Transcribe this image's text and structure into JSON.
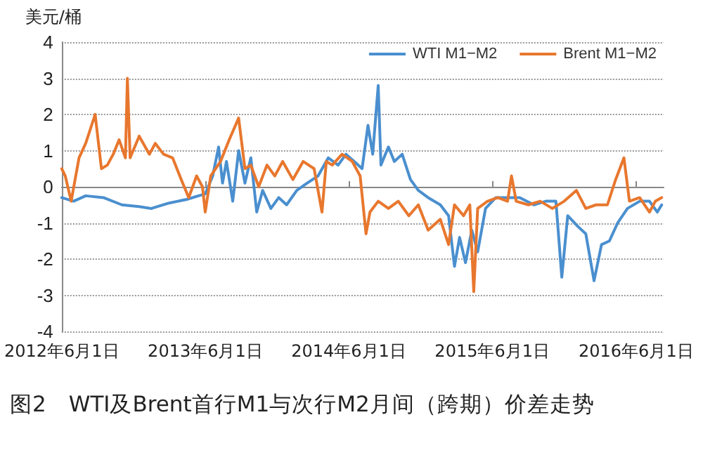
{
  "chart_data": {
    "type": "line",
    "title": "图2　WTI及Brent首行M1与次行M2月间（跨期）价差走势",
    "ylabel": "美元/桶",
    "xlim": [
      "2012-06-01",
      "2016-08-10"
    ],
    "xticks": [
      {
        "value": "2012-06-01",
        "label": "2012年6月1日"
      },
      {
        "value": "2013-06-01",
        "label": "2013年6月1日"
      },
      {
        "value": "2014-06-01",
        "label": "2014年6月1日"
      },
      {
        "value": "2015-06-01",
        "label": "2015年6月1日"
      },
      {
        "value": "2016-06-01",
        "label": "2016年6月1日"
      }
    ],
    "ylim": [
      -4,
      4
    ],
    "yticks": [
      -4,
      -3,
      -2,
      -1,
      0,
      1,
      2,
      3,
      4
    ],
    "grid": "y",
    "legend": "top right",
    "marker": "none",
    "line_style": "solid",
    "series": [
      {
        "name": "WTI M1−M2",
        "color": "#4a8fcf",
        "x": [
          "2012-06-01",
          "2012-07-01",
          "2012-08-01",
          "2012-09-15",
          "2012-11-01",
          "2012-12-15",
          "2013-01-15",
          "2013-03-01",
          "2013-04-15",
          "2013-05-15",
          "2013-06-01",
          "2013-06-20",
          "2013-07-05",
          "2013-07-15",
          "2013-07-25",
          "2013-08-10",
          "2013-08-25",
          "2013-09-10",
          "2013-09-25",
          "2013-10-10",
          "2013-10-25",
          "2013-11-15",
          "2013-12-05",
          "2013-12-25",
          "2014-01-20",
          "2014-02-15",
          "2014-03-15",
          "2014-04-10",
          "2014-05-05",
          "2014-05-25",
          "2014-06-15",
          "2014-07-05",
          "2014-07-20",
          "2014-08-01",
          "2014-08-15",
          "2014-08-22",
          "2014-09-10",
          "2014-09-25",
          "2014-10-15",
          "2014-11-05",
          "2014-11-25",
          "2014-12-20",
          "2015-01-20",
          "2015-02-10",
          "2015-02-25",
          "2015-03-10",
          "2015-03-25",
          "2015-04-10",
          "2015-04-25",
          "2015-05-15",
          "2015-06-10",
          "2015-07-10",
          "2015-08-10",
          "2015-09-15",
          "2015-10-15",
          "2015-11-10",
          "2015-11-25",
          "2015-12-10",
          "2016-01-05",
          "2016-01-25",
          "2016-02-15",
          "2016-03-05",
          "2016-03-25",
          "2016-04-15",
          "2016-05-10",
          "2016-06-10",
          "2016-07-05",
          "2016-07-25",
          "2016-08-05"
        ],
        "values": [
          -0.3,
          -0.4,
          -0.25,
          -0.3,
          -0.5,
          -0.55,
          -0.6,
          -0.45,
          -0.35,
          -0.25,
          -0.2,
          0.3,
          1.1,
          0.1,
          0.7,
          -0.4,
          1.0,
          0.1,
          0.8,
          -0.7,
          -0.1,
          -0.6,
          -0.3,
          -0.5,
          -0.1,
          0.1,
          0.3,
          0.8,
          0.6,
          0.9,
          0.7,
          0.5,
          1.7,
          0.9,
          2.8,
          0.6,
          1.1,
          0.7,
          0.9,
          0.2,
          -0.1,
          -0.3,
          -0.5,
          -0.8,
          -2.2,
          -1.4,
          -2.1,
          -1.2,
          -1.8,
          -0.6,
          -0.3,
          -0.3,
          -0.3,
          -0.5,
          -0.4,
          -0.4,
          -2.5,
          -0.8,
          -1.1,
          -1.3,
          -2.6,
          -1.6,
          -1.5,
          -1.0,
          -0.6,
          -0.4,
          -0.4,
          -0.7,
          -0.5
        ]
      },
      {
        "name": "Brent M1−M2",
        "color": "#e8772e",
        "x": [
          "2012-06-01",
          "2012-06-10",
          "2012-06-25",
          "2012-07-15",
          "2012-08-01",
          "2012-08-25",
          "2012-09-10",
          "2012-09-25",
          "2012-10-10",
          "2012-10-25",
          "2012-11-10",
          "2012-11-15",
          "2012-11-22",
          "2012-12-15",
          "2013-01-10",
          "2013-01-25",
          "2013-02-15",
          "2013-03-10",
          "2013-04-01",
          "2013-04-20",
          "2013-05-10",
          "2013-05-25",
          "2013-06-01",
          "2013-06-15",
          "2013-07-10",
          "2013-08-01",
          "2013-08-25",
          "2013-09-10",
          "2013-09-25",
          "2013-10-15",
          "2013-11-05",
          "2013-11-25",
          "2013-12-15",
          "2014-01-10",
          "2014-02-05",
          "2014-03-05",
          "2014-03-25",
          "2014-04-05",
          "2014-04-20",
          "2014-05-15",
          "2014-06-10",
          "2014-06-30",
          "2014-07-15",
          "2014-07-25",
          "2014-08-15",
          "2014-09-10",
          "2014-10-05",
          "2014-11-01",
          "2014-11-25",
          "2014-12-20",
          "2015-01-20",
          "2015-02-10",
          "2015-02-25",
          "2015-03-20",
          "2015-04-05",
          "2015-04-15",
          "2015-04-25",
          "2015-05-20",
          "2015-06-15",
          "2015-07-10",
          "2015-07-20",
          "2015-08-01",
          "2015-09-01",
          "2015-10-01",
          "2015-11-01",
          "2015-12-01",
          "2016-01-01",
          "2016-01-25",
          "2016-02-20",
          "2016-03-20",
          "2016-04-10",
          "2016-05-01",
          "2016-05-15",
          "2016-06-10",
          "2016-07-05",
          "2016-07-20",
          "2016-08-05"
        ],
        "values": [
          0.5,
          0.3,
          -0.4,
          0.8,
          1.2,
          2.0,
          0.5,
          0.6,
          0.9,
          1.3,
          0.8,
          3.0,
          0.8,
          1.4,
          0.9,
          1.2,
          0.9,
          0.8,
          0.2,
          -0.3,
          0.3,
          0.0,
          -0.7,
          0.3,
          0.7,
          1.3,
          1.9,
          0.5,
          0.6,
          0.0,
          0.6,
          0.3,
          0.7,
          0.2,
          0.7,
          0.5,
          -0.7,
          0.7,
          0.6,
          0.9,
          0.7,
          0.3,
          -1.3,
          -0.7,
          -0.4,
          -0.6,
          -0.4,
          -0.8,
          -0.5,
          -1.2,
          -0.9,
          -1.6,
          -0.5,
          -0.8,
          -0.5,
          -2.9,
          -0.6,
          -0.4,
          -0.3,
          -0.4,
          0.3,
          -0.4,
          -0.5,
          -0.4,
          -0.6,
          -0.4,
          -0.1,
          -0.6,
          -0.5,
          -0.5,
          0.2,
          0.8,
          -0.4,
          -0.3,
          -0.7,
          -0.4,
          -0.3
        ]
      }
    ]
  }
}
